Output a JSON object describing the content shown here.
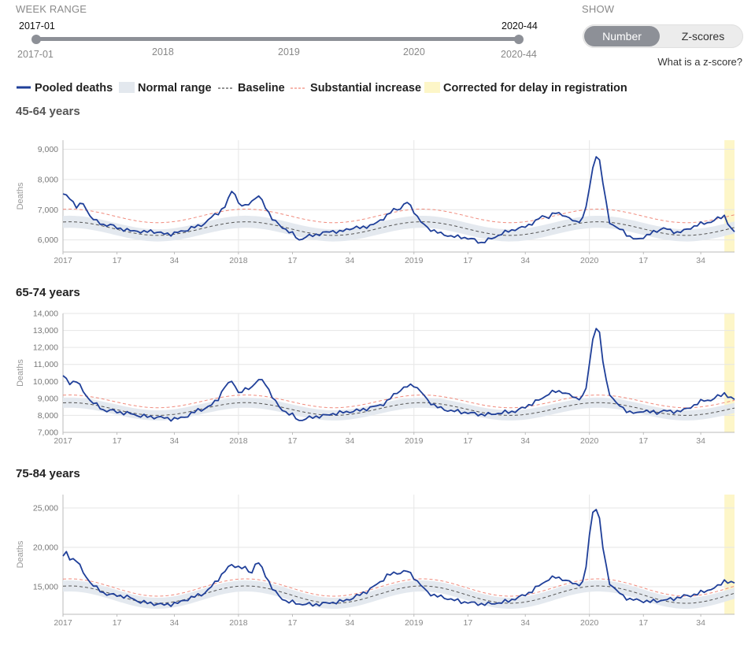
{
  "controls": {
    "week_range_label": "WEEK RANGE",
    "range_start": "2017-01",
    "range_end": "2020-44",
    "range_min": "2017-01",
    "range_max": "2020-44",
    "year_ticks": [
      "2018",
      "2019",
      "2020"
    ],
    "show_label": "SHOW",
    "toggle_number": "Number",
    "toggle_zscores": "Z-scores",
    "zscore_link": "What is a z-score?"
  },
  "legend": {
    "pooled": "Pooled deaths",
    "normal": "Normal range",
    "baseline": "Baseline",
    "substantial": "Substantial increase",
    "corrected": "Corrected for delay in registration"
  },
  "colors": {
    "pooled": "#1f3f99",
    "band": "#e3e8ee",
    "baseline": "#555555",
    "substantial": "#f08a7c",
    "corrected": "#fdf6c8",
    "grid": "#e6e6e6"
  },
  "x_ticks": [
    "2017",
    "17",
    "34",
    "2018",
    "17",
    "34",
    "2019",
    "17",
    "34",
    "2020",
    "17",
    "34"
  ],
  "y_axis_label": "Deaths",
  "chart_data": [
    {
      "type": "line",
      "title": "45-64 years",
      "ylabel": "Deaths",
      "ylim": [
        5600,
        9300
      ],
      "yticks": [
        6000,
        7000,
        8000,
        9000
      ],
      "ytick_labels": [
        "6,000",
        "7,000",
        "8,000",
        "9,000"
      ],
      "x_range": [
        0,
        199
      ],
      "corrected_start": 196,
      "baseline_peak": 6600,
      "baseline_trough": 6150,
      "band_halfwidth": 200,
      "substantial_offset": 420,
      "series_keypoints": [
        [
          0,
          7500
        ],
        [
          2,
          7400
        ],
        [
          4,
          7100
        ],
        [
          6,
          7200
        ],
        [
          8,
          6800
        ],
        [
          10,
          6600
        ],
        [
          12,
          6500
        ],
        [
          14,
          6500
        ],
        [
          16,
          6400
        ],
        [
          18,
          6350
        ],
        [
          20,
          6300
        ],
        [
          22,
          6300
        ],
        [
          24,
          6250
        ],
        [
          26,
          6300
        ],
        [
          28,
          6250
        ],
        [
          30,
          6200
        ],
        [
          32,
          6200
        ],
        [
          34,
          6250
        ],
        [
          36,
          6300
        ],
        [
          38,
          6400
        ],
        [
          40,
          6450
        ],
        [
          42,
          6550
        ],
        [
          44,
          6750
        ],
        [
          46,
          6900
        ],
        [
          48,
          7100
        ],
        [
          50,
          7600
        ],
        [
          51,
          7550
        ],
        [
          52,
          7200
        ],
        [
          54,
          7100
        ],
        [
          56,
          7300
        ],
        [
          58,
          7450
        ],
        [
          60,
          7100
        ],
        [
          62,
          6700
        ],
        [
          64,
          6500
        ],
        [
          66,
          6350
        ],
        [
          68,
          6200
        ],
        [
          70,
          6000
        ],
        [
          72,
          6100
        ],
        [
          74,
          6150
        ],
        [
          76,
          6200
        ],
        [
          78,
          6250
        ],
        [
          80,
          6300
        ],
        [
          82,
          6250
        ],
        [
          84,
          6350
        ],
        [
          86,
          6400
        ],
        [
          88,
          6400
        ],
        [
          90,
          6450
        ],
        [
          92,
          6500
        ],
        [
          94,
          6650
        ],
        [
          96,
          6800
        ],
        [
          98,
          7000
        ],
        [
          100,
          7050
        ],
        [
          102,
          7250
        ],
        [
          104,
          6950
        ],
        [
          106,
          6600
        ],
        [
          108,
          6400
        ],
        [
          110,
          6300
        ],
        [
          112,
          6200
        ],
        [
          114,
          6150
        ],
        [
          116,
          6100
        ],
        [
          118,
          6100
        ],
        [
          120,
          6050
        ],
        [
          122,
          6000
        ],
        [
          124,
          5900
        ],
        [
          126,
          6000
        ],
        [
          128,
          6100
        ],
        [
          130,
          6200
        ],
        [
          132,
          6300
        ],
        [
          134,
          6350
        ],
        [
          136,
          6400
        ],
        [
          138,
          6500
        ],
        [
          140,
          6600
        ],
        [
          142,
          6800
        ],
        [
          144,
          6750
        ],
        [
          146,
          6900
        ],
        [
          148,
          6850
        ],
        [
          150,
          6700
        ],
        [
          152,
          6600
        ],
        [
          154,
          6700
        ],
        [
          155,
          7100
        ],
        [
          156,
          7700
        ],
        [
          157,
          8400
        ],
        [
          158,
          8800
        ],
        [
          159,
          8600
        ],
        [
          160,
          7900
        ],
        [
          161,
          7200
        ],
        [
          162,
          6600
        ],
        [
          164,
          6400
        ],
        [
          166,
          6300
        ],
        [
          168,
          6100
        ],
        [
          170,
          6000
        ],
        [
          172,
          6100
        ],
        [
          174,
          6200
        ],
        [
          176,
          6300
        ],
        [
          178,
          6400
        ],
        [
          180,
          6300
        ],
        [
          182,
          6250
        ],
        [
          184,
          6300
        ],
        [
          186,
          6400
        ],
        [
          188,
          6500
        ],
        [
          190,
          6550
        ],
        [
          192,
          6600
        ],
        [
          194,
          6700
        ],
        [
          196,
          6800
        ],
        [
          198,
          6350
        ],
        [
          199,
          6250
        ]
      ]
    },
    {
      "type": "line",
      "title": "65-74 years",
      "ylabel": "Deaths",
      "ylim": [
        7000,
        14000
      ],
      "yticks": [
        7000,
        8000,
        9000,
        10000,
        11000,
        12000,
        13000,
        14000
      ],
      "ytick_labels": [
        "7,000",
        "8,000",
        "9,000",
        "10,000",
        "11,000",
        "12,000",
        "13,000",
        "14,000"
      ],
      "x_range": [
        0,
        199
      ],
      "corrected_start": 196,
      "baseline_peak": 8750,
      "baseline_trough": 8000,
      "band_halfwidth": 300,
      "substantial_offset": 450,
      "series_keypoints": [
        [
          0,
          10300
        ],
        [
          2,
          9900
        ],
        [
          4,
          10050
        ],
        [
          6,
          9400
        ],
        [
          8,
          8900
        ],
        [
          10,
          8600
        ],
        [
          12,
          8300
        ],
        [
          14,
          8300
        ],
        [
          16,
          8200
        ],
        [
          18,
          8150
        ],
        [
          20,
          8100
        ],
        [
          22,
          8000
        ],
        [
          24,
          7950
        ],
        [
          26,
          7900
        ],
        [
          28,
          7900
        ],
        [
          30,
          7850
        ],
        [
          32,
          7800
        ],
        [
          34,
          7800
        ],
        [
          36,
          7900
        ],
        [
          38,
          8100
        ],
        [
          40,
          8300
        ],
        [
          42,
          8400
        ],
        [
          44,
          8600
        ],
        [
          46,
          9000
        ],
        [
          48,
          9700
        ],
        [
          50,
          10000
        ],
        [
          51,
          9800
        ],
        [
          52,
          9300
        ],
        [
          54,
          9500
        ],
        [
          56,
          9700
        ],
        [
          58,
          10100
        ],
        [
          60,
          9900
        ],
        [
          62,
          9100
        ],
        [
          64,
          8500
        ],
        [
          66,
          8200
        ],
        [
          68,
          8000
        ],
        [
          70,
          7700
        ],
        [
          72,
          7800
        ],
        [
          74,
          7900
        ],
        [
          76,
          7950
        ],
        [
          78,
          8000
        ],
        [
          80,
          8100
        ],
        [
          82,
          8150
        ],
        [
          84,
          8200
        ],
        [
          86,
          8250
        ],
        [
          88,
          8300
        ],
        [
          90,
          8400
        ],
        [
          92,
          8500
        ],
        [
          94,
          8600
        ],
        [
          96,
          8800
        ],
        [
          98,
          9200
        ],
        [
          100,
          9500
        ],
        [
          102,
          9700
        ],
        [
          104,
          9800
        ],
        [
          106,
          9400
        ],
        [
          108,
          8900
        ],
        [
          110,
          8600
        ],
        [
          112,
          8400
        ],
        [
          114,
          8300
        ],
        [
          116,
          8250
        ],
        [
          118,
          8200
        ],
        [
          120,
          8150
        ],
        [
          122,
          8100
        ],
        [
          124,
          8050
        ],
        [
          126,
          8050
        ],
        [
          128,
          8100
        ],
        [
          130,
          8150
        ],
        [
          132,
          8200
        ],
        [
          134,
          8250
        ],
        [
          136,
          8400
        ],
        [
          138,
          8600
        ],
        [
          140,
          8800
        ],
        [
          142,
          9000
        ],
        [
          144,
          9300
        ],
        [
          146,
          9400
        ],
        [
          148,
          9400
        ],
        [
          150,
          9200
        ],
        [
          152,
          9000
        ],
        [
          154,
          9100
        ],
        [
          155,
          9600
        ],
        [
          156,
          11000
        ],
        [
          157,
          12500
        ],
        [
          158,
          13200
        ],
        [
          159,
          12800
        ],
        [
          160,
          11200
        ],
        [
          161,
          10000
        ],
        [
          162,
          9300
        ],
        [
          164,
          8700
        ],
        [
          166,
          8400
        ],
        [
          168,
          8200
        ],
        [
          170,
          8100
        ],
        [
          172,
          8300
        ],
        [
          174,
          8200
        ],
        [
          176,
          8150
        ],
        [
          178,
          8300
        ],
        [
          180,
          8200
        ],
        [
          182,
          8250
        ],
        [
          184,
          8300
        ],
        [
          186,
          8500
        ],
        [
          188,
          8700
        ],
        [
          190,
          8900
        ],
        [
          192,
          8900
        ],
        [
          194,
          9100
        ],
        [
          196,
          9300
        ],
        [
          198,
          9000
        ],
        [
          199,
          8900
        ]
      ]
    },
    {
      "type": "line",
      "title": "75-84 years",
      "ylabel": "Deaths",
      "ylim": [
        11500,
        26700
      ],
      "yticks": [
        15000,
        20000,
        25000
      ],
      "ytick_labels": [
        "15,000",
        "20,000",
        "25,000"
      ],
      "x_range": [
        0,
        199
      ],
      "corrected_start": 196,
      "baseline_peak": 15100,
      "baseline_trough": 12900,
      "band_halfwidth": 700,
      "substantial_offset": 900,
      "series_keypoints": [
        [
          0,
          18800
        ],
        [
          1,
          19300
        ],
        [
          2,
          18600
        ],
        [
          4,
          18400
        ],
        [
          6,
          16800
        ],
        [
          8,
          15600
        ],
        [
          10,
          14800
        ],
        [
          12,
          14200
        ],
        [
          14,
          14000
        ],
        [
          16,
          13900
        ],
        [
          18,
          13800
        ],
        [
          20,
          13600
        ],
        [
          22,
          13200
        ],
        [
          24,
          13000
        ],
        [
          26,
          12900
        ],
        [
          28,
          12800
        ],
        [
          30,
          12700
        ],
        [
          32,
          12800
        ],
        [
          34,
          12900
        ],
        [
          36,
          13300
        ],
        [
          38,
          13600
        ],
        [
          40,
          13900
        ],
        [
          42,
          14200
        ],
        [
          44,
          15000
        ],
        [
          46,
          16000
        ],
        [
          48,
          17000
        ],
        [
          50,
          17800
        ],
        [
          52,
          17500
        ],
        [
          54,
          17300
        ],
        [
          56,
          16800
        ],
        [
          57,
          17900
        ],
        [
          58,
          18000
        ],
        [
          60,
          16500
        ],
        [
          62,
          14800
        ],
        [
          64,
          13800
        ],
        [
          66,
          13200
        ],
        [
          68,
          13000
        ],
        [
          70,
          12800
        ],
        [
          72,
          12800
        ],
        [
          74,
          12700
        ],
        [
          76,
          12800
        ],
        [
          78,
          12900
        ],
        [
          80,
          13000
        ],
        [
          82,
          13100
        ],
        [
          84,
          13300
        ],
        [
          86,
          13600
        ],
        [
          88,
          14000
        ],
        [
          90,
          14400
        ],
        [
          92,
          15000
        ],
        [
          94,
          15600
        ],
        [
          96,
          16400
        ],
        [
          98,
          16700
        ],
        [
          100,
          16800
        ],
        [
          102,
          17000
        ],
        [
          104,
          16200
        ],
        [
          106,
          15200
        ],
        [
          108,
          14300
        ],
        [
          110,
          13900
        ],
        [
          112,
          13700
        ],
        [
          114,
          13500
        ],
        [
          116,
          13300
        ],
        [
          118,
          13100
        ],
        [
          120,
          13000
        ],
        [
          122,
          12900
        ],
        [
          124,
          12800
        ],
        [
          126,
          12800
        ],
        [
          128,
          12900
        ],
        [
          130,
          13000
        ],
        [
          132,
          13200
        ],
        [
          134,
          13500
        ],
        [
          136,
          13800
        ],
        [
          138,
          14200
        ],
        [
          140,
          14800
        ],
        [
          142,
          15400
        ],
        [
          144,
          16000
        ],
        [
          146,
          16200
        ],
        [
          148,
          16000
        ],
        [
          150,
          15600
        ],
        [
          152,
          15300
        ],
        [
          154,
          15500
        ],
        [
          155,
          17500
        ],
        [
          156,
          21500
        ],
        [
          157,
          24500
        ],
        [
          158,
          25000
        ],
        [
          159,
          23500
        ],
        [
          160,
          20000
        ],
        [
          161,
          17500
        ],
        [
          162,
          15500
        ],
        [
          164,
          14500
        ],
        [
          166,
          13800
        ],
        [
          168,
          13400
        ],
        [
          170,
          13300
        ],
        [
          172,
          13200
        ],
        [
          174,
          13100
        ],
        [
          176,
          13200
        ],
        [
          178,
          13300
        ],
        [
          180,
          13400
        ],
        [
          182,
          13600
        ],
        [
          184,
          13800
        ],
        [
          186,
          13900
        ],
        [
          188,
          14100
        ],
        [
          190,
          14400
        ],
        [
          192,
          14700
        ],
        [
          194,
          15000
        ],
        [
          196,
          15800
        ],
        [
          198,
          15500
        ],
        [
          199,
          15400
        ]
      ]
    }
  ]
}
